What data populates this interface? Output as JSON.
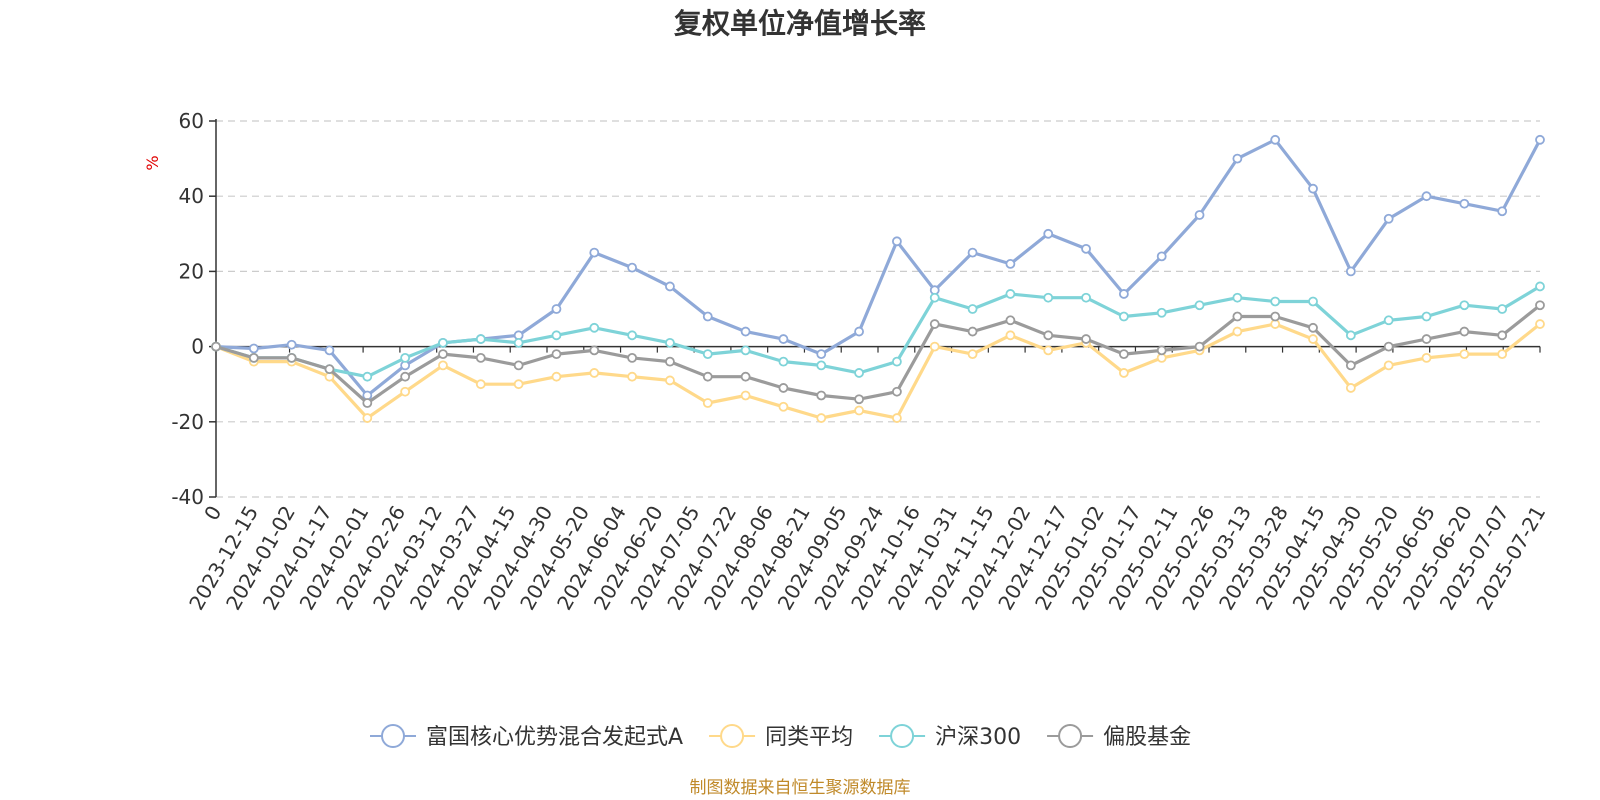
{
  "chart_data": {
    "type": "line",
    "title": "复权单位净值增长率",
    "ylabel": "%",
    "xlabel": "",
    "ylim": [
      -40,
      60
    ],
    "yticks": [
      -40,
      -20,
      0,
      20,
      40,
      60
    ],
    "grid": true,
    "legend_position": "bottom",
    "source": "制图数据来自恒生聚源数据库",
    "x_start_label": "0",
    "categories": [
      "2023-12-15",
      "2024-01-02",
      "2024-01-17",
      "2024-02-01",
      "2024-02-26",
      "2024-03-12",
      "2024-03-27",
      "2024-04-15",
      "2024-04-30",
      "2024-05-20",
      "2024-06-04",
      "2024-06-20",
      "2024-07-05",
      "2024-07-22",
      "2024-08-06",
      "2024-08-21",
      "2024-09-05",
      "2024-09-24",
      "2024-10-16",
      "2024-10-31",
      "2024-11-15",
      "2024-12-02",
      "2024-12-17",
      "2025-01-02",
      "2025-01-17",
      "2025-02-11",
      "2025-02-26",
      "2025-03-13",
      "2025-03-28",
      "2025-04-15",
      "2025-04-30",
      "2025-05-20",
      "2025-06-05",
      "2025-06-20",
      "2025-07-07",
      "2025-07-21"
    ],
    "series": [
      {
        "name": "富国核心优势混合发起式A",
        "color": "#8fa9d8",
        "values": [
          0,
          -0.5,
          0.5,
          -1,
          -13,
          -5,
          1,
          2,
          3,
          10,
          25,
          21,
          16,
          8,
          4,
          2,
          -2,
          4,
          28,
          15,
          25,
          22,
          30,
          26,
          14,
          24,
          35,
          50,
          55,
          42,
          20,
          34,
          40,
          38,
          36,
          55
        ]
      },
      {
        "name": "同类平均",
        "color": "#ffd98a",
        "values": [
          0,
          -4,
          -4,
          -8,
          -19,
          -12,
          -5,
          -10,
          -10,
          -8,
          -7,
          -8,
          -9,
          -15,
          -13,
          -16,
          -19,
          -17,
          -19,
          0,
          -2,
          3,
          -1,
          1,
          -7,
          -3,
          -1,
          4,
          6,
          2,
          -11,
          -5,
          -3,
          -2,
          -2,
          6
        ]
      },
      {
        "name": "沪深300",
        "color": "#7ed3d8",
        "values": [
          0,
          -3,
          -3,
          -6,
          -8,
          -3,
          1,
          2,
          1,
          3,
          5,
          3,
          1,
          -2,
          -1,
          -4,
          -5,
          -7,
          -4,
          13,
          10,
          14,
          13,
          13,
          8,
          9,
          11,
          13,
          12,
          12,
          3,
          7,
          8,
          11,
          10,
          16
        ]
      },
      {
        "name": "偏股基金",
        "color": "#9b9b9b",
        "values": [
          0,
          -3,
          -3,
          -6,
          -15,
          -8,
          -2,
          -3,
          -5,
          -2,
          -1,
          -3,
          -4,
          -8,
          -8,
          -11,
          -13,
          -14,
          -12,
          6,
          4,
          7,
          3,
          2,
          -2,
          -1,
          0,
          8,
          8,
          5,
          -5,
          0,
          2,
          4,
          3,
          11
        ]
      }
    ]
  }
}
